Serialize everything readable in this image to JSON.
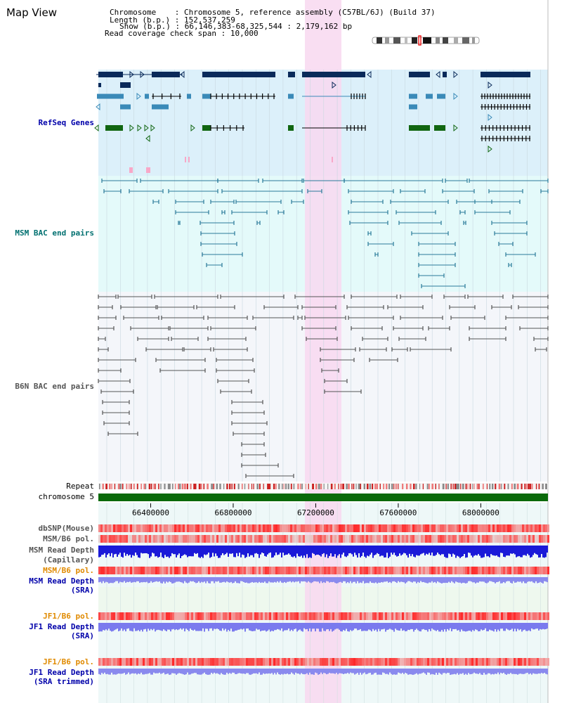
{
  "header": {
    "title": "Map View",
    "chromosome_label": "Chromosome    ",
    "chromosome_value": "Chromosome 5, reference assembly (C57BL/6J) (Build 37)",
    "length_label": "Length (b.p.)",
    "length_value": "152,537,259",
    "show_label": "Show (b.p.)",
    "show_value": "66,146,383-68,325,544 : 2,179,162 bp",
    "coverage_label": "Read coverage check span",
    "coverage_value": "10,000"
  },
  "tracks": {
    "refseq": "RefSeq Genes",
    "msm_bac": "MSM BAC end pairs",
    "b6n_bac": "B6N BAC end pairs",
    "repeat": "Repeat",
    "chromosome": "chromosome 5",
    "dbsnp": "dbSNP(Mouse)",
    "msm_b6_pol": "MSM/B6 pol.",
    "msm_read_depth_cap_1": "MSM Read Depth",
    "msm_read_depth_cap_2": "(Capillary)",
    "msm_b6_pol_2": "MSM/B6 pol.",
    "msm_read_depth_sra_1": "MSM Read Depth",
    "msm_read_depth_sra_2": "(SRA)",
    "jf1_b6_pol": "JF1/B6 pol.",
    "jf1_read_depth_sra_1": "JF1 Read Depth",
    "jf1_read_depth_sra_2": "(SRA)",
    "jf1_b6_pol_2": "JF1/B6 pol.",
    "jf1_read_depth_trim_1": "JF1 Read Depth",
    "jf1_read_depth_trim_2": "(SRA trimmed)"
  },
  "axis": {
    "ticks": [
      "66400000",
      "66800000",
      "67200000",
      "67600000",
      "68000000"
    ],
    "range": [
      66146383,
      68325544
    ]
  },
  "colors": {
    "refseq_bg": "#dcf0fa",
    "refseq_dark": "#0a2a5a",
    "refseq_mid": "#3a8ab8",
    "refseq_green": "#116611",
    "msm_bg": "#e4fafa",
    "msm_line": "#2a7a9a",
    "b6n_bg": "#f4f6fa",
    "b6n_line": "#555555",
    "highlight": "#f8d8f0",
    "chromosome_bar": "#0a6a0a",
    "label_blue": "#0000aa",
    "label_teal": "#007070",
    "label_gray": "#555555",
    "label_orange": "#e08a00"
  }
}
